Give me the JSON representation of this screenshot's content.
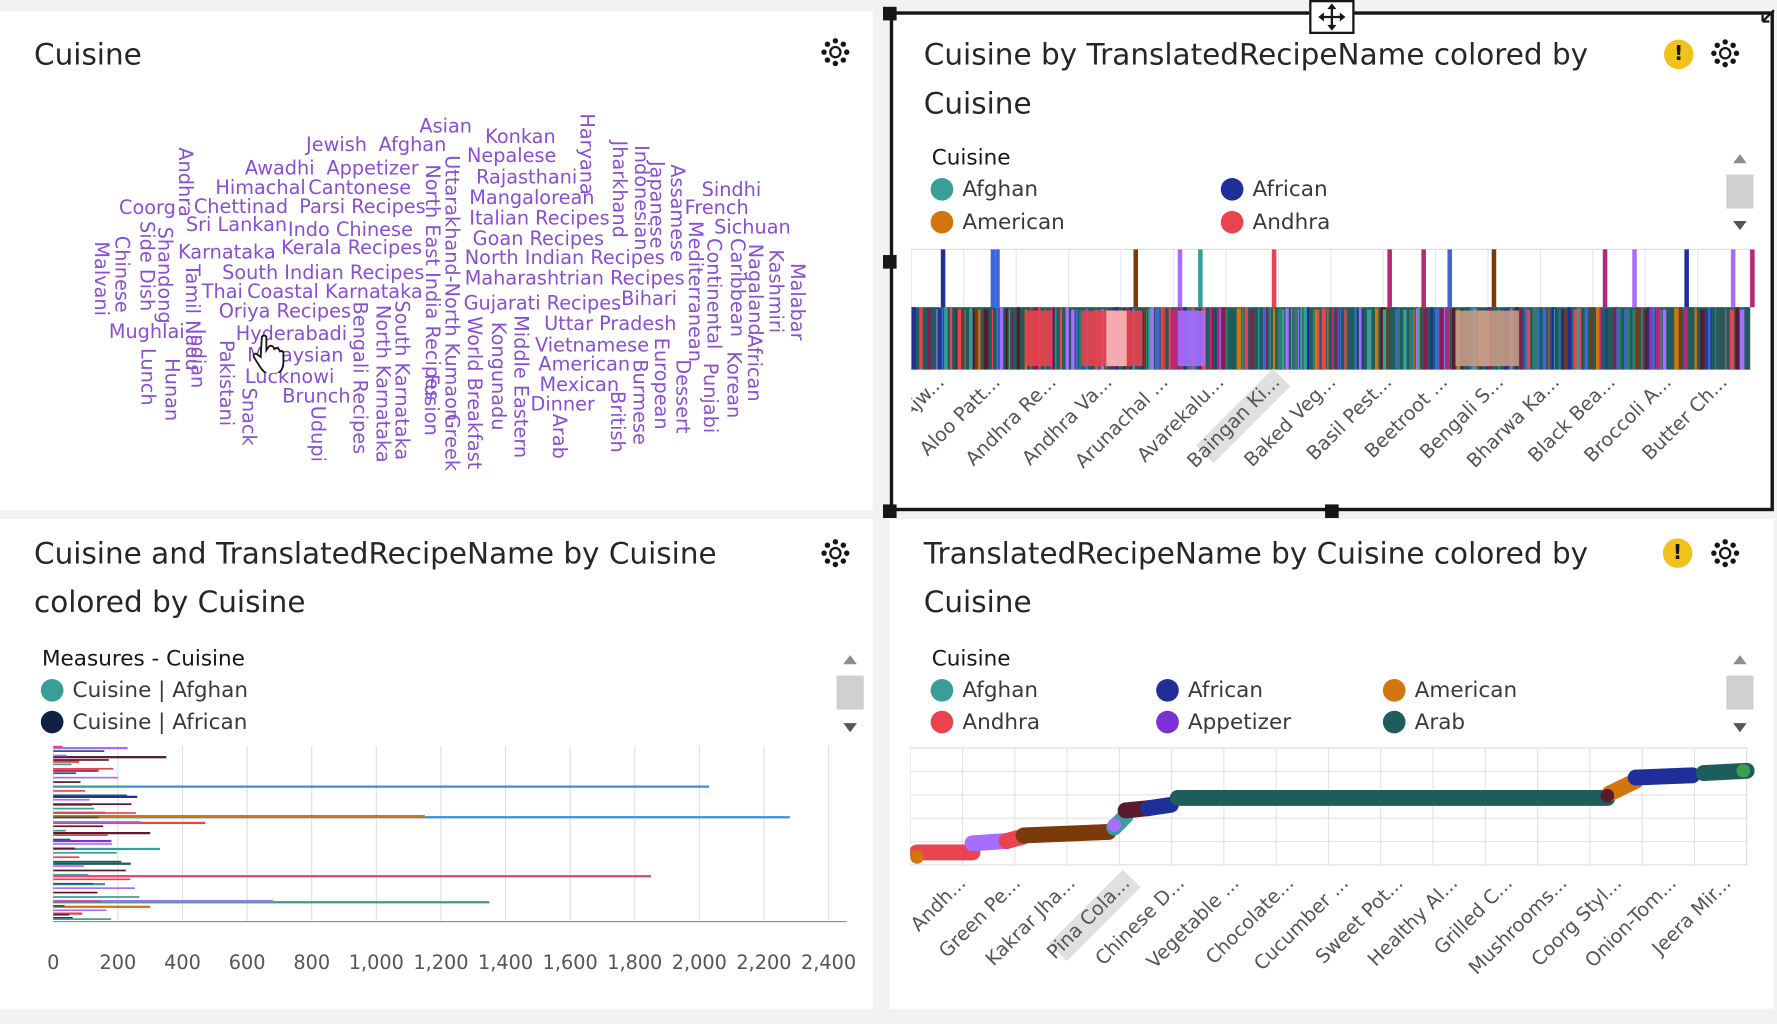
{
  "panels": {
    "wordcloud": {
      "title": "Cuisine",
      "words": [
        "Asian",
        "Konkan",
        "Jewish",
        "Afghan",
        "Nepalese",
        "Haryana",
        "Awadhi",
        "Appetizer",
        "Rajasthani",
        "Jharkhand",
        "Indonesian",
        "Assamese",
        "Himachal",
        "Cantonese",
        "Mangalorean",
        "Japanese",
        "Sindhi",
        "Coorg",
        "Chettinad",
        "Parsi Recipes",
        "Italian Recipes",
        "French",
        "Sri Lankan",
        "Indo Chinese",
        "Goan Recipes",
        "Sichuan",
        "Karnataka",
        "Kerala Recipes",
        "North Indian Recipes",
        "South Indian Recipes",
        "Maharashtrian Recipes",
        "Thai",
        "Coastal Karnataka",
        "Bihari",
        "Oriya Recipes",
        "Gujarati Recipes",
        "Uttar Pradesh",
        "Mughlai",
        "Hyderabadi",
        "Malaysian",
        "Vietnamese",
        "Lucknowi",
        "American",
        "Brunch",
        "Mexican",
        "Dinner",
        "Andhra",
        "Chinese",
        "Malvani",
        "Side Dish",
        "Shandong",
        "Lunch",
        "Tamil Nadu",
        "Indian",
        "Hunan",
        "Pakistani",
        "Snack",
        "Udupi",
        "Bengali Recipes",
        "North Karnataka",
        "South Karnataka",
        "North East India Recipes",
        "Fusion",
        "Uttarakhand-North Kumaon",
        "Greek",
        "World Breakfast",
        "Kongunadu",
        "Middle Eastern",
        "Arab",
        "British",
        "Burmese",
        "European",
        "Mediterranean",
        "Dessert",
        "Continental",
        "Punjabi",
        "Caribbean",
        "Nagaland",
        "Korean",
        "African",
        "Kashmiri",
        "Malabar"
      ]
    },
    "bar_chart": {
      "title": "Cuisine by TranslatedRecipeName colored by\nCuisine",
      "legend_title": "Cuisine",
      "legend": [
        {
          "label": "Afghan",
          "color": "#3a9e98"
        },
        {
          "label": "African",
          "color": "#1f2f9a"
        },
        {
          "label": "American",
          "color": "#d4740c"
        },
        {
          "label": "Andhra",
          "color": "#e8434e"
        }
      ],
      "x_labels": [
        "Ajw...",
        "Aloo Patt...",
        "Andhra Re...",
        "Andhra Va...",
        "Arunachal ...",
        "Avarekalu...",
        "Baingan Ki...",
        "Baked Veg...",
        "Basil Pest...",
        "Beetroot ...",
        "Bengali S...",
        "Bharwa Ka...",
        "Black Bea...",
        "Broccoli A...",
        "Butter Ch..."
      ],
      "highlighted_label": "Baingan Ki..."
    },
    "hbar_chart": {
      "title": "Cuisine and TranslatedRecipeName by Cuisine\ncolored by Cuisine",
      "legend_title": "Measures - Cuisine",
      "legend": [
        {
          "label": "Cuisine | Afghan",
          "color": "#3a9e98"
        },
        {
          "label": "Cuisine | African",
          "color": "#0f2145"
        }
      ],
      "x_ticks": [
        "0",
        "200",
        "400",
        "600",
        "800",
        "1,000",
        "1,200",
        "1,400",
        "1,600",
        "1,800",
        "2,000",
        "2,200",
        "2,400"
      ]
    },
    "line_chart": {
      "title": "TranslatedRecipeName by Cuisine colored by\nCuisine",
      "legend_title": "Cuisine",
      "legend": [
        {
          "label": "Afghan",
          "color": "#3a9e98"
        },
        {
          "label": "African",
          "color": "#1f2f9a"
        },
        {
          "label": "American",
          "color": "#d4740c"
        },
        {
          "label": "Andhra",
          "color": "#e8434e"
        },
        {
          "label": "Appetizer",
          "color": "#7b2fd6"
        },
        {
          "label": "Arab",
          "color": "#1f5c5c"
        }
      ],
      "x_labels": [
        "Andh...",
        "Green Pe...",
        "Kakrar Jha...",
        "Pina Cola...",
        "Chinese D...",
        "Vegetable ...",
        "Chocolate...",
        "Cucumber ...",
        "Sweet Pot...",
        "Healthy Al...",
        "Grilled C...",
        "Mushrooms...",
        "Coorg Styl...",
        "Onion-Tom...",
        "Jeera Mir..."
      ],
      "highlighted_label": "Pina Cola..."
    }
  },
  "colors": {
    "wordcloud": "#8a4fd1",
    "teal_dark": "#1f5c5c",
    "warning": "#f1c21b"
  },
  "icons": [
    "gear-icon",
    "warning-icon",
    "move-icon",
    "resize-icon",
    "scroll-up-icon",
    "scroll-down-icon",
    "hand-cursor-icon"
  ]
}
